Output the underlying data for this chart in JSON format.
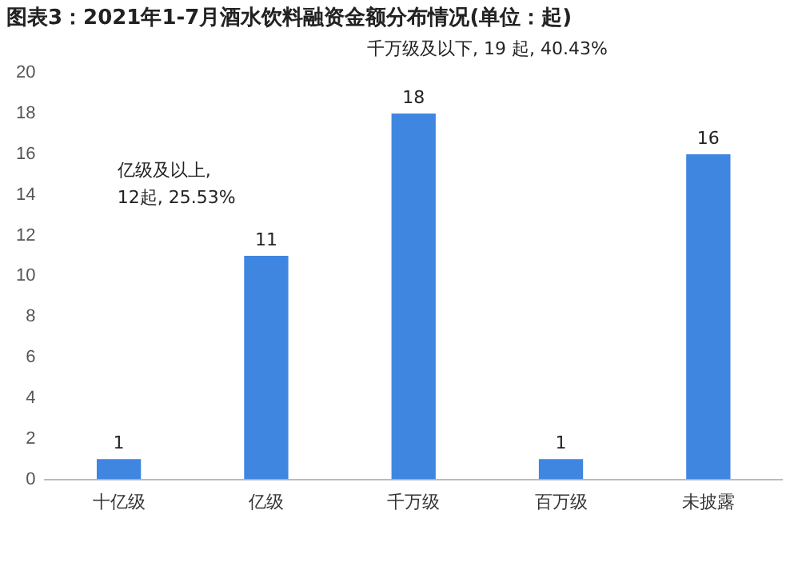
{
  "chart_data": {
    "type": "bar",
    "title": "图表3：2021年1-7月酒水饮料融资金额分布情况(单位：起)",
    "categories": [
      "十亿级",
      "亿级",
      "千万级",
      "百万级",
      "未披露"
    ],
    "values": [
      1,
      11,
      18,
      1,
      16
    ],
    "color": "#3f86e0",
    "ylim": [
      0,
      20
    ],
    "yticks": [
      0,
      2,
      4,
      6,
      8,
      10,
      12,
      14,
      16,
      18,
      20
    ],
    "grid": false,
    "legend": false,
    "data_labels": true,
    "annotations": [
      "亿级及以上,\n12起, 25.53%",
      "千万级及以下, 19 起, 40.43%"
    ]
  }
}
